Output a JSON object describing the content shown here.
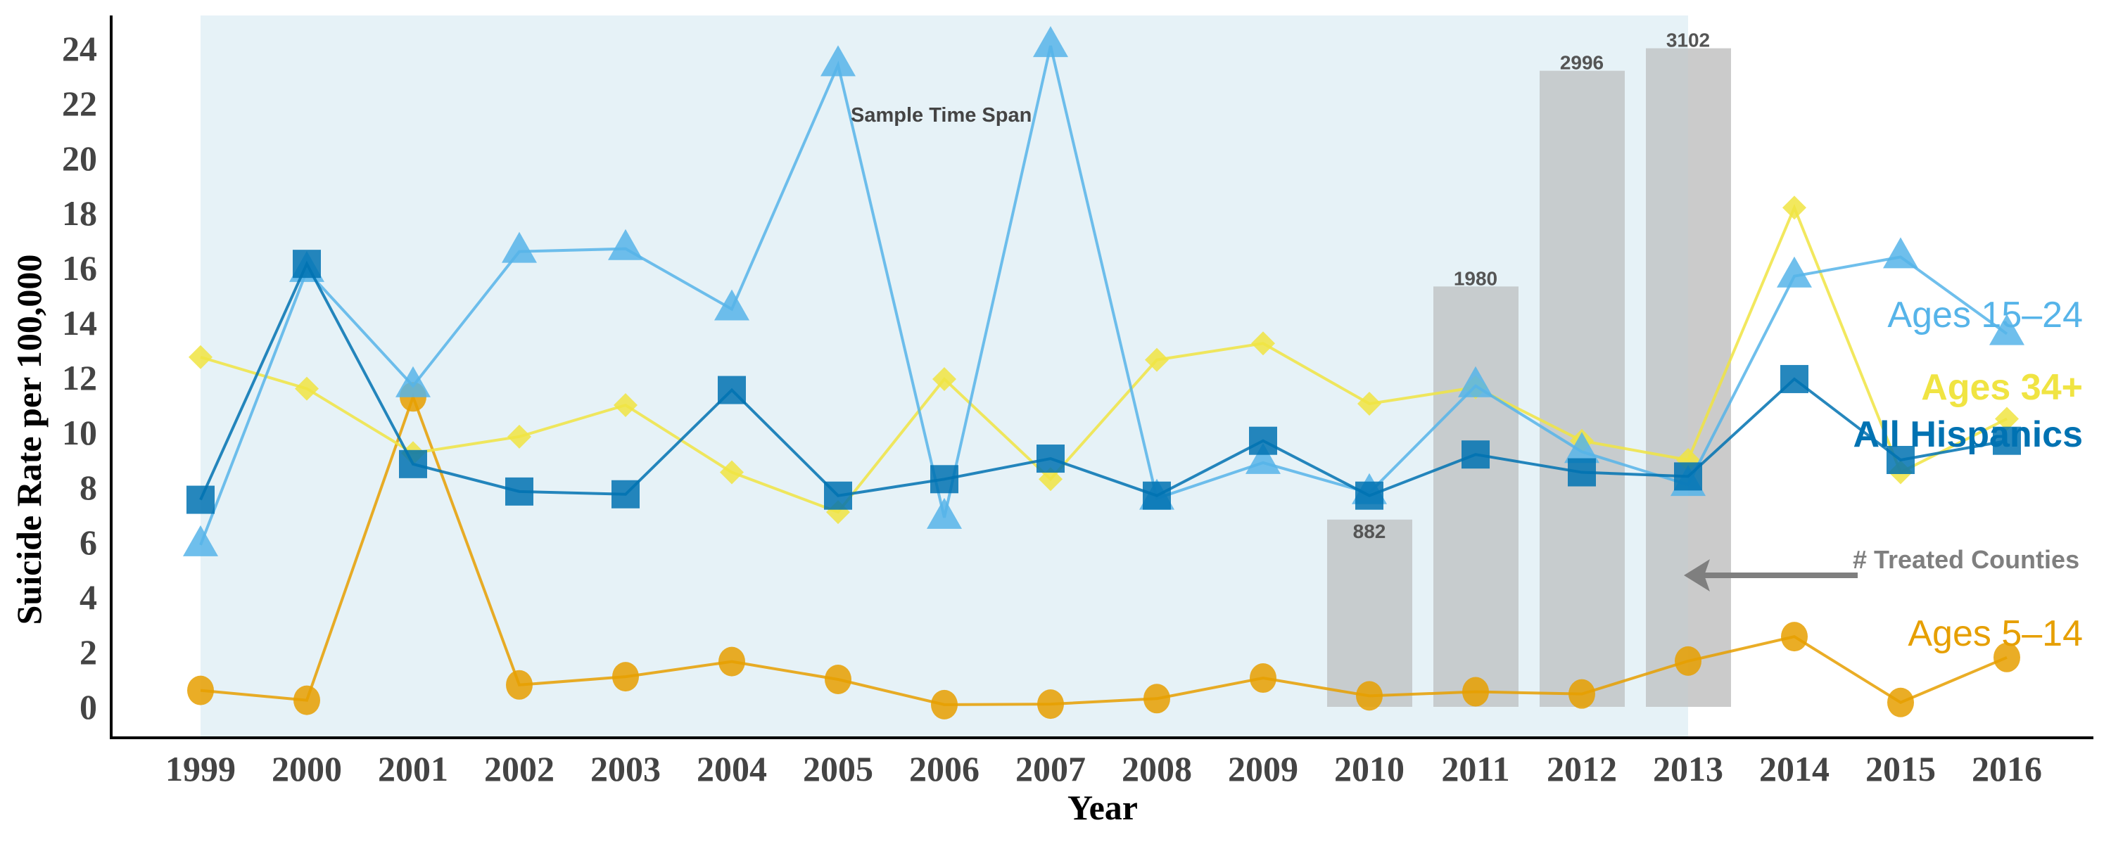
{
  "chart_data": {
    "type": "line",
    "title": "",
    "xlabel": "Year",
    "ylabel": "Suicide Rate per 100,000",
    "ylim": [
      0,
      24
    ],
    "yticks": [
      0,
      2,
      4,
      6,
      8,
      10,
      12,
      14,
      16,
      18,
      20,
      22,
      24
    ],
    "x": [
      1999,
      2000,
      2001,
      2002,
      2003,
      2004,
      2005,
      2006,
      2007,
      2008,
      2009,
      2010,
      2011,
      2012,
      2013,
      2014,
      2015,
      2016
    ],
    "series": [
      {
        "name": "Ages 5–14",
        "color": "#e69f00",
        "marker": "circle",
        "values": [
          0.6,
          0.24,
          11.3,
          0.8,
          1.1,
          1.65,
          1.0,
          0.08,
          0.1,
          0.3,
          1.05,
          0.4,
          0.55,
          0.47,
          1.67,
          2.56,
          0.16,
          1.8
        ]
      },
      {
        "name": "Ages 34+",
        "color": "#f0e442",
        "marker": "diamond",
        "values": [
          12.75,
          11.6,
          9.25,
          9.85,
          11.0,
          8.55,
          7.1,
          11.95,
          8.3,
          12.65,
          13.25,
          11.05,
          11.65,
          9.7,
          9.0,
          18.2,
          8.55,
          10.5
        ]
      },
      {
        "name": "Ages 15–24",
        "color": "#56b4e9",
        "marker": "triangle",
        "values": [
          5.9,
          15.9,
          11.7,
          16.6,
          16.7,
          14.5,
          23.4,
          6.9,
          24.1,
          7.6,
          8.9,
          7.8,
          11.7,
          9.3,
          8.1,
          15.7,
          16.4,
          13.6
        ]
      },
      {
        "name": "All Hispanics",
        "color": "#0072b2",
        "marker": "square",
        "values": [
          7.55,
          16.15,
          8.85,
          7.85,
          7.75,
          11.55,
          7.7,
          8.3,
          9.05,
          7.7,
          9.7,
          7.7,
          9.2,
          8.55,
          8.4,
          11.95,
          9.0,
          9.7
        ]
      }
    ],
    "bars": {
      "name": "# Treated Counties",
      "x": [
        2010,
        2011,
        2012,
        2013
      ],
      "values": [
        882,
        1980,
        2996,
        3102
      ],
      "labels": [
        "882",
        "1980",
        "2996",
        "3102"
      ],
      "counties_per_rate_unit": 129.2
    },
    "shaded_span": {
      "label": "Sample Time Span",
      "from": 1999,
      "to": 2013
    },
    "legend_placement": "right, inline labels"
  }
}
